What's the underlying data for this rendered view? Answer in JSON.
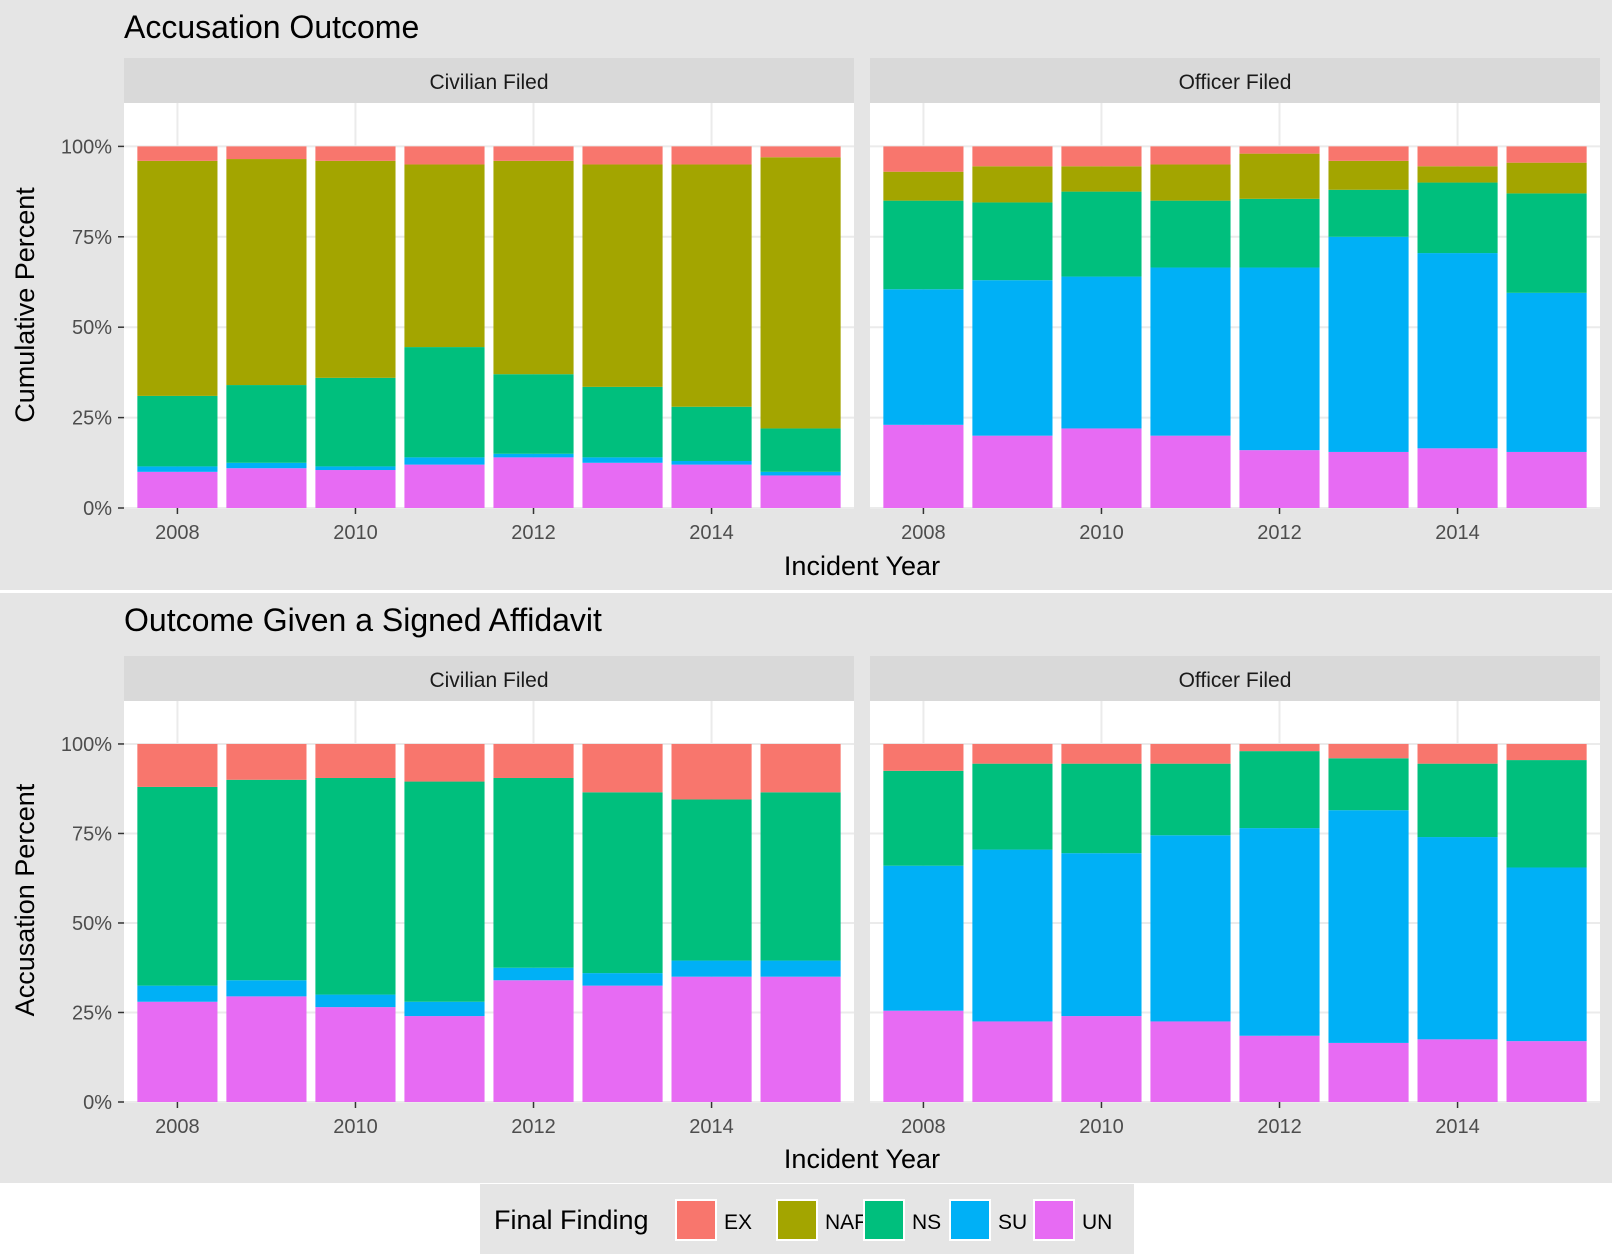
{
  "legend": {
    "title": "Final Finding",
    "keys": [
      "EX",
      "NAF",
      "NS",
      "SU",
      "UN"
    ],
    "colors": {
      "EX": "#F8766D",
      "NAF": "#A3A500",
      "NS": "#00BF7D",
      "SU": "#00B0F6",
      "UN": "#E76BF3"
    }
  },
  "chart_data": [
    {
      "type": "bar",
      "stacked": true,
      "title": "Accusation Outcome",
      "xlabel": "Incident Year",
      "ylabel": "Cumulative Percent",
      "ylim": [
        0,
        1.12
      ],
      "yticks": [
        0,
        0.25,
        0.5,
        0.75,
        1.0
      ],
      "ytick_labels": [
        "0%",
        "25%",
        "50%",
        "75%",
        "100%"
      ],
      "xticks": [
        2008,
        2010,
        2012,
        2014
      ],
      "xtick_labels": [
        "2008",
        "2010",
        "2012",
        "2014"
      ],
      "grid": true,
      "legend_position": "bottom",
      "facets": [
        {
          "label": "Civilian  Filed",
          "x": [
            2008,
            2009,
            2010,
            2011,
            2012,
            2013,
            2014,
            2015
          ],
          "series": [
            {
              "name": "UN",
              "values": [
                0.1,
                0.11,
                0.105,
                0.12,
                0.14,
                0.125,
                0.12,
                0.09
              ]
            },
            {
              "name": "SU",
              "values": [
                0.015,
                0.015,
                0.01,
                0.02,
                0.01,
                0.015,
                0.01,
                0.01
              ]
            },
            {
              "name": "NS",
              "values": [
                0.195,
                0.215,
                0.245,
                0.305,
                0.22,
                0.195,
                0.15,
                0.12
              ]
            },
            {
              "name": "NAF",
              "values": [
                0.65,
                0.625,
                0.6,
                0.505,
                0.59,
                0.615,
                0.67,
                0.75
              ]
            },
            {
              "name": "EX",
              "values": [
                0.04,
                0.035,
                0.04,
                0.05,
                0.04,
                0.05,
                0.05,
                0.03
              ]
            }
          ]
        },
        {
          "label": "Officer  Filed",
          "x": [
            2008,
            2009,
            2010,
            2011,
            2012,
            2013,
            2014,
            2015
          ],
          "series": [
            {
              "name": "UN",
              "values": [
                0.23,
                0.2,
                0.22,
                0.2,
                0.16,
                0.155,
                0.165,
                0.155
              ]
            },
            {
              "name": "SU",
              "values": [
                0.375,
                0.43,
                0.42,
                0.465,
                0.505,
                0.595,
                0.54,
                0.44
              ]
            },
            {
              "name": "NS",
              "values": [
                0.245,
                0.215,
                0.235,
                0.185,
                0.19,
                0.13,
                0.195,
                0.275
              ]
            },
            {
              "name": "NAF",
              "values": [
                0.08,
                0.1,
                0.07,
                0.1,
                0.125,
                0.08,
                0.045,
                0.085
              ]
            },
            {
              "name": "EX",
              "values": [
                0.07,
                0.055,
                0.055,
                0.05,
                0.02,
                0.04,
                0.055,
                0.045
              ]
            }
          ]
        }
      ]
    },
    {
      "type": "bar",
      "stacked": true,
      "title": "Outcome Given a Signed Affidavit",
      "xlabel": "Incident Year",
      "ylabel": "Accusation Percent",
      "ylim": [
        0,
        1.12
      ],
      "yticks": [
        0,
        0.25,
        0.5,
        0.75,
        1.0
      ],
      "ytick_labels": [
        "0%",
        "25%",
        "50%",
        "75%",
        "100%"
      ],
      "xticks": [
        2008,
        2010,
        2012,
        2014
      ],
      "xtick_labels": [
        "2008",
        "2010",
        "2012",
        "2014"
      ],
      "grid": true,
      "legend_position": "bottom",
      "facets": [
        {
          "label": "Civilian  Filed",
          "x": [
            2008,
            2009,
            2010,
            2011,
            2012,
            2013,
            2014,
            2015
          ],
          "series": [
            {
              "name": "UN",
              "values": [
                0.28,
                0.295,
                0.265,
                0.24,
                0.34,
                0.325,
                0.35,
                0.35
              ]
            },
            {
              "name": "SU",
              "values": [
                0.045,
                0.045,
                0.035,
                0.04,
                0.035,
                0.035,
                0.045,
                0.045
              ]
            },
            {
              "name": "NS",
              "values": [
                0.555,
                0.56,
                0.605,
                0.615,
                0.53,
                0.505,
                0.45,
                0.47
              ]
            },
            {
              "name": "EX",
              "values": [
                0.12,
                0.1,
                0.095,
                0.105,
                0.095,
                0.135,
                0.155,
                0.135
              ]
            }
          ]
        },
        {
          "label": "Officer  Filed",
          "x": [
            2008,
            2009,
            2010,
            2011,
            2012,
            2013,
            2014,
            2015
          ],
          "series": [
            {
              "name": "UN",
              "values": [
                0.255,
                0.225,
                0.24,
                0.225,
                0.185,
                0.165,
                0.175,
                0.17
              ]
            },
            {
              "name": "SU",
              "values": [
                0.405,
                0.48,
                0.455,
                0.52,
                0.58,
                0.65,
                0.565,
                0.485
              ]
            },
            {
              "name": "NS",
              "values": [
                0.265,
                0.24,
                0.25,
                0.2,
                0.215,
                0.145,
                0.205,
                0.3
              ]
            },
            {
              "name": "EX",
              "values": [
                0.075,
                0.055,
                0.055,
                0.055,
                0.02,
                0.04,
                0.055,
                0.045
              ]
            }
          ]
        }
      ]
    }
  ]
}
